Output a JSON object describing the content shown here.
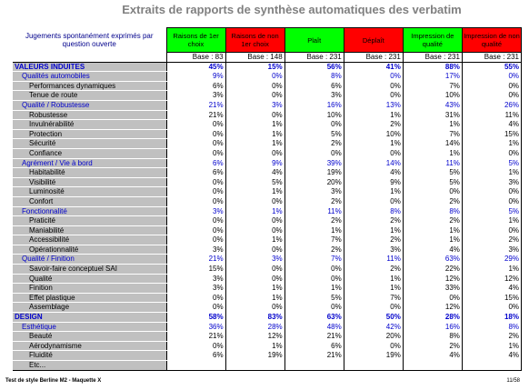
{
  "header": {
    "title": "Extraits de rapports de synthèse automatiques des verbatim"
  },
  "table": {
    "corner": "Jugements spontanément exprimés par question ouverte",
    "columns": [
      {
        "label": "Raisons de 1er choix",
        "color": "#00ff00"
      },
      {
        "label": "Raisons de non 1er choix",
        "color": "#ff0000"
      },
      {
        "label": "Plaît",
        "color": "#00ff00"
      },
      {
        "label": "Déplaît",
        "color": "#ff0000"
      },
      {
        "label": "Impression de qualité",
        "color": "#00ff00"
      },
      {
        "label": "Impression de non qualité",
        "color": "#ff0000"
      }
    ],
    "bases": [
      "Base : 83",
      "Base : 148",
      "Base : 231",
      "Base : 231",
      "Base : 231",
      "Base : 231"
    ],
    "rows": [
      {
        "label": "VALEURS INDUITES",
        "level": "section",
        "values": [
          "45%",
          "15%",
          "56%",
          "41%",
          "88%",
          "55%"
        ]
      },
      {
        "label": "Qualités automobiles",
        "level": "group",
        "values": [
          "9%",
          "0%",
          "8%",
          "0%",
          "17%",
          "0%"
        ]
      },
      {
        "label": "Performances dynamiques",
        "level": "item",
        "values": [
          "6%",
          "0%",
          "6%",
          "0%",
          "7%",
          "0%"
        ]
      },
      {
        "label": "Tenue de route",
        "level": "item",
        "values": [
          "3%",
          "0%",
          "3%",
          "0%",
          "10%",
          "0%"
        ]
      },
      {
        "label": "Qualité / Robustesse",
        "level": "group",
        "values": [
          "21%",
          "3%",
          "16%",
          "13%",
          "43%",
          "26%"
        ]
      },
      {
        "label": "Robustesse",
        "level": "item",
        "values": [
          "21%",
          "0%",
          "10%",
          "1%",
          "31%",
          "11%"
        ]
      },
      {
        "label": "Invulnérabilité",
        "level": "item",
        "values": [
          "0%",
          "1%",
          "0%",
          "2%",
          "1%",
          "4%"
        ]
      },
      {
        "label": "Protection",
        "level": "item",
        "values": [
          "0%",
          "1%",
          "5%",
          "10%",
          "7%",
          "15%"
        ]
      },
      {
        "label": "Sécurité",
        "level": "item",
        "values": [
          "0%",
          "1%",
          "2%",
          "1%",
          "14%",
          "1%"
        ]
      },
      {
        "label": "Confiance",
        "level": "item",
        "values": [
          "0%",
          "0%",
          "0%",
          "0%",
          "1%",
          "0%"
        ]
      },
      {
        "label": "Agrément / Vie à bord",
        "level": "group",
        "values": [
          "6%",
          "9%",
          "39%",
          "14%",
          "11%",
          "5%"
        ]
      },
      {
        "label": "Habitabilité",
        "level": "item",
        "values": [
          "6%",
          "4%",
          "19%",
          "4%",
          "5%",
          "1%"
        ]
      },
      {
        "label": "Visibilité",
        "level": "item",
        "values": [
          "0%",
          "5%",
          "20%",
          "9%",
          "5%",
          "3%"
        ]
      },
      {
        "label": "Luminosité",
        "level": "item",
        "values": [
          "0%",
          "1%",
          "3%",
          "1%",
          "0%",
          "0%"
        ]
      },
      {
        "label": "Confort",
        "level": "item",
        "values": [
          "0%",
          "0%",
          "2%",
          "0%",
          "2%",
          "0%"
        ]
      },
      {
        "label": "Fonctionnalité",
        "level": "group",
        "values": [
          "3%",
          "1%",
          "11%",
          "8%",
          "8%",
          "5%"
        ]
      },
      {
        "label": "Praticité",
        "level": "item",
        "values": [
          "0%",
          "0%",
          "2%",
          "2%",
          "2%",
          "1%"
        ]
      },
      {
        "label": "Maniabilité",
        "level": "item",
        "values": [
          "0%",
          "0%",
          "1%",
          "1%",
          "1%",
          "0%"
        ]
      },
      {
        "label": "Accessibilité",
        "level": "item",
        "values": [
          "0%",
          "1%",
          "7%",
          "2%",
          "1%",
          "2%"
        ]
      },
      {
        "label": "Opérationnalité",
        "level": "item",
        "values": [
          "3%",
          "0%",
          "2%",
          "3%",
          "4%",
          "3%"
        ]
      },
      {
        "label": "Qualité / Finition",
        "level": "group",
        "values": [
          "21%",
          "3%",
          "7%",
          "11%",
          "63%",
          "29%"
        ]
      },
      {
        "label": "Savoir-faire conceptuel SAI",
        "level": "item",
        "values": [
          "15%",
          "0%",
          "0%",
          "2%",
          "22%",
          "1%"
        ]
      },
      {
        "label": "Qualité",
        "level": "item",
        "values": [
          "3%",
          "0%",
          "0%",
          "1%",
          "12%",
          "12%"
        ]
      },
      {
        "label": "Finition",
        "level": "item",
        "values": [
          "3%",
          "1%",
          "1%",
          "1%",
          "33%",
          "4%"
        ]
      },
      {
        "label": "Effet plastique",
        "level": "item",
        "values": [
          "0%",
          "1%",
          "5%",
          "7%",
          "0%",
          "15%"
        ]
      },
      {
        "label": "Assemblage",
        "level": "item",
        "values": [
          "0%",
          "0%",
          "0%",
          "0%",
          "12%",
          "0%"
        ]
      },
      {
        "label": "DESIGN",
        "level": "section",
        "values": [
          "58%",
          "83%",
          "63%",
          "50%",
          "28%",
          "18%"
        ]
      },
      {
        "label": "Esthétique",
        "level": "group",
        "values": [
          "36%",
          "28%",
          "48%",
          "42%",
          "16%",
          "8%"
        ]
      },
      {
        "label": "Beauté",
        "level": "item",
        "values": [
          "21%",
          "12%",
          "21%",
          "20%",
          "8%",
          "2%"
        ]
      },
      {
        "label": "Aérodynamisme",
        "level": "item",
        "values": [
          "0%",
          "1%",
          "6%",
          "0%",
          "2%",
          "1%"
        ]
      },
      {
        "label": "Fluidité",
        "level": "item",
        "values": [
          "6%",
          "19%",
          "21%",
          "19%",
          "4%",
          "4%"
        ]
      },
      {
        "label": "Etc...",
        "level": "item"
      }
    ]
  },
  "footer": {
    "left": "Test de style Berline M2 - Maquette X",
    "right": "11/58"
  }
}
